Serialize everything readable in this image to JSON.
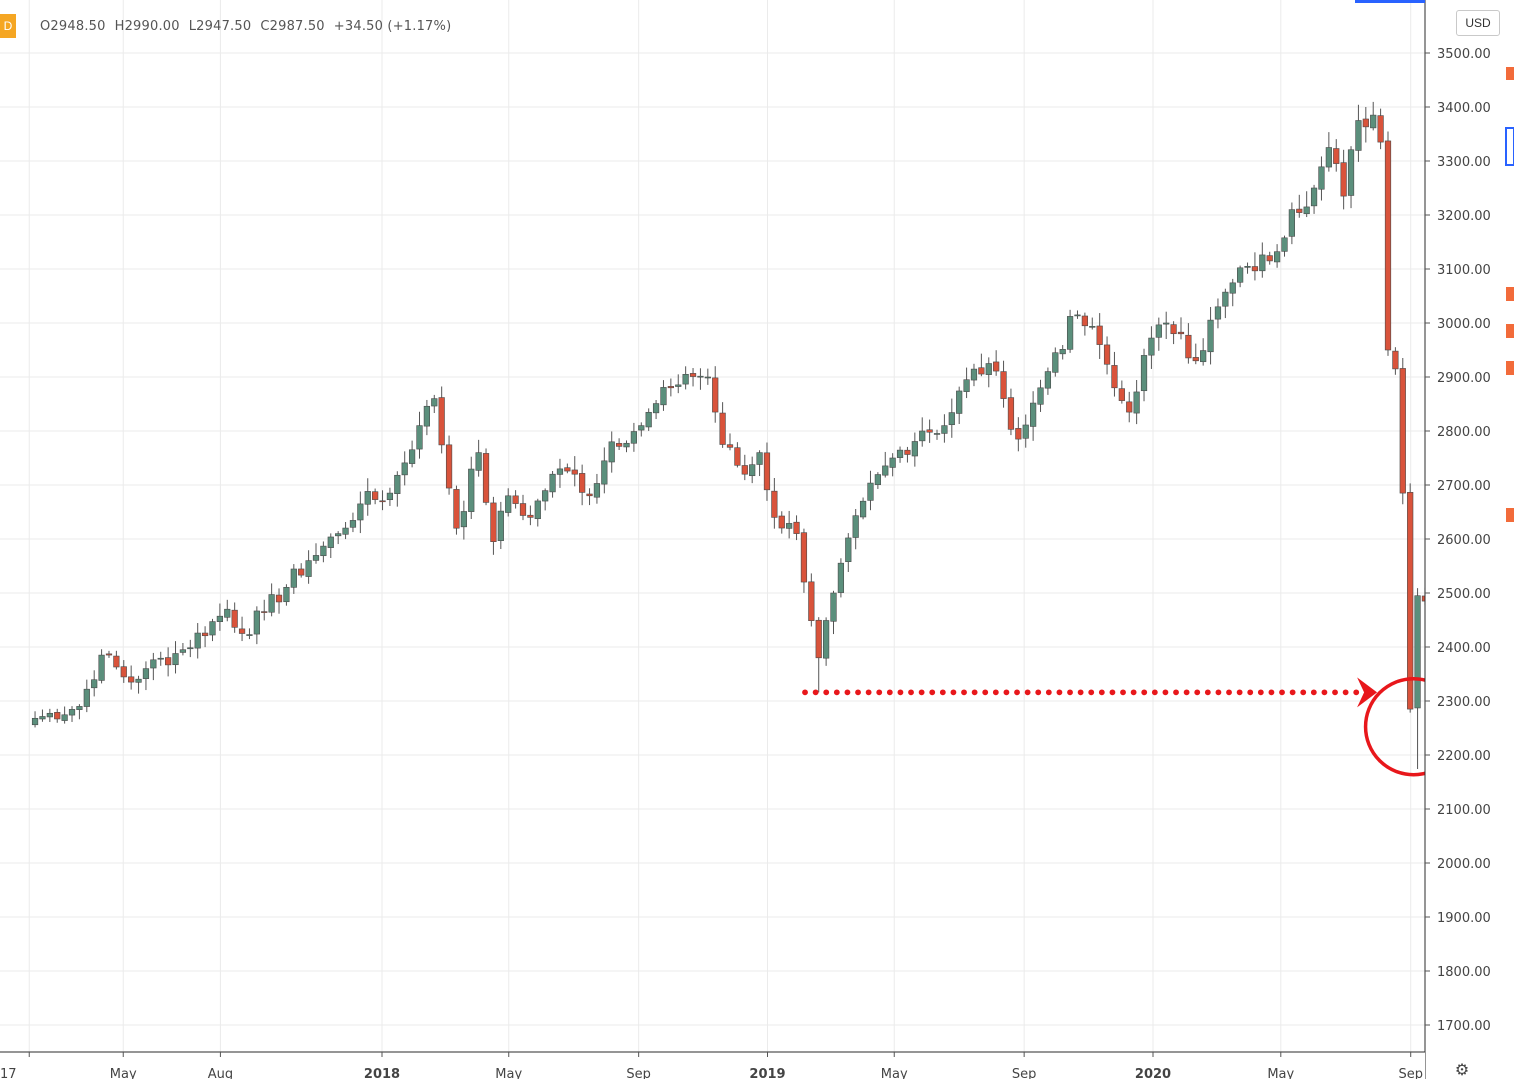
{
  "header": {
    "symbol_tag": "D",
    "open": "O2948.50",
    "high": "H2990.00",
    "low": "L2947.50",
    "close": "C2987.50",
    "change": "+34.50 (+1.17%)"
  },
  "currency": "USD",
  "colors": {
    "up": "#5b8f7c",
    "down": "#d9533b",
    "annotation": "#e8171b"
  },
  "chart_data": {
    "type": "candlestick",
    "title": "",
    "xlabel": "",
    "ylabel": "",
    "ylim": [
      1650,
      3560
    ],
    "y_ticks": [
      1700,
      1800,
      1900,
      2000,
      2100,
      2200,
      2300,
      2400,
      2500,
      2600,
      2700,
      2800,
      2900,
      3000,
      3100,
      3200,
      3300,
      3400,
      3500
    ],
    "y_tick_labels": [
      "1700.00",
      "1800.00",
      "1900.00",
      "2000.00",
      "2100.00",
      "2200.00",
      "2300.00",
      "2400.00",
      "2500.00",
      "2600.00",
      "2700.00",
      "2800.00",
      "2900.00",
      "3000.00",
      "3100.00",
      "3200.00",
      "3300.00",
      "3400.00",
      "3500.00"
    ],
    "x_tick_labels": [
      "17",
      "May",
      "Aug",
      "2018",
      "May",
      "Sep",
      "2019",
      "May",
      "Sep",
      "2020",
      "May",
      "Sep"
    ],
    "x_tick_dates": [
      "2017-02-01",
      "2017-05-01",
      "2017-08-01",
      "2018-01-01",
      "2018-05-01",
      "2018-09-01",
      "2019-01-01",
      "2019-05-01",
      "2019-09-01",
      "2020-01-01",
      "2020-05-01",
      "2020-09-01"
    ],
    "bar_interval": "weekly",
    "first_bar_date": "2017-02-03",
    "grid": true,
    "key_points": [
      {
        "label": "Dec 2018 low",
        "value": 2316
      },
      {
        "label": "Feb 2020 high",
        "value": 3397
      },
      {
        "label": "Mar 2020 low",
        "value": 2174
      }
    ],
    "annotations": [
      {
        "type": "dotted-arrow",
        "from_value": 2316,
        "to_value": 2316
      },
      {
        "type": "circle",
        "around": "Mar 2020 low"
      }
    ],
    "anchor_closes": [
      [
        0,
        2268
      ],
      [
        6,
        2290
      ],
      [
        9,
        2385
      ],
      [
        13,
        2335
      ],
      [
        15,
        2360
      ],
      [
        20,
        2395
      ],
      [
        26,
        2470
      ],
      [
        28,
        2425
      ],
      [
        31,
        2465
      ],
      [
        37,
        2560
      ],
      [
        41,
        2610
      ],
      [
        44,
        2665
      ],
      [
        48,
        2685
      ],
      [
        52,
        2810
      ],
      [
        54,
        2860
      ],
      [
        57,
        2620
      ],
      [
        60,
        2760
      ],
      [
        62,
        2595
      ],
      [
        64,
        2680
      ],
      [
        67,
        2640
      ],
      [
        70,
        2720
      ],
      [
        73,
        2720
      ],
      [
        75,
        2680
      ],
      [
        78,
        2780
      ],
      [
        82,
        2810
      ],
      [
        86,
        2880
      ],
      [
        88,
        2905
      ],
      [
        91,
        2900
      ],
      [
        93,
        2775
      ],
      [
        96,
        2720
      ],
      [
        98,
        2760
      ],
      [
        100,
        2640
      ],
      [
        103,
        2610
      ],
      [
        106,
        2380
      ],
      [
        108,
        2500
      ],
      [
        112,
        2670
      ],
      [
        116,
        2750
      ],
      [
        120,
        2800
      ],
      [
        123,
        2810
      ],
      [
        126,
        2895
      ],
      [
        129,
        2925
      ],
      [
        131,
        2860
      ],
      [
        133,
        2785
      ],
      [
        136,
        2880
      ],
      [
        138,
        2945
      ],
      [
        141,
        3015
      ],
      [
        144,
        2960
      ],
      [
        146,
        2880
      ],
      [
        148,
        2835
      ],
      [
        150,
        2940
      ],
      [
        153,
        3000
      ],
      [
        155,
        2980
      ],
      [
        157,
        2930
      ],
      [
        160,
        3030
      ],
      [
        164,
        3105
      ],
      [
        167,
        3115
      ],
      [
        170,
        3210
      ],
      [
        173,
        3250
      ],
      [
        175,
        3325
      ],
      [
        177,
        3235
      ],
      [
        179,
        3375
      ],
      [
        181,
        3385
      ],
      [
        182,
        3335
      ],
      [
        183,
        2950
      ],
      [
        184,
        2915
      ],
      [
        185,
        2685
      ],
      [
        186,
        2285
      ],
      [
        187,
        2495
      ],
      [
        188,
        2485
      ],
      [
        189,
        2790
      ],
      [
        190,
        2875
      ],
      [
        191,
        2835
      ],
      [
        192,
        2805
      ],
      [
        193,
        2920
      ],
      [
        194,
        2860
      ],
      [
        195,
        2950
      ],
      [
        196,
        2987.5
      ]
    ]
  }
}
